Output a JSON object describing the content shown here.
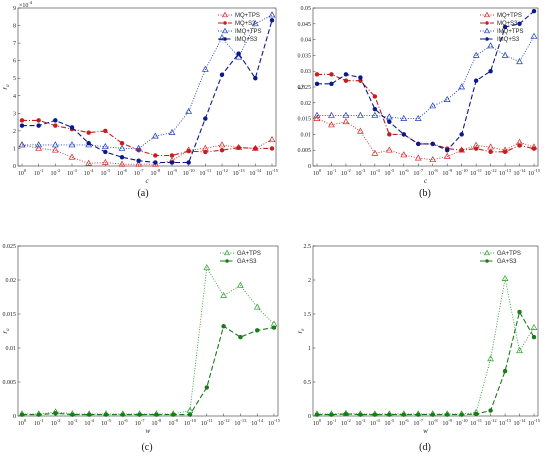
{
  "chart_data": [
    {
      "type": "line",
      "caption": "(a)",
      "xlabel": "c",
      "ylabel": "r",
      "ylabel_sub": "a",
      "ylim": [
        0,
        9
      ],
      "yticks": [
        0,
        1,
        2,
        3,
        4,
        5,
        6,
        7,
        8,
        9
      ],
      "y_exponent": "×10^-4",
      "categories": [
        "10^0",
        "10^-1",
        "10^-2",
        "10^-3",
        "10^-4",
        "10^-5",
        "10^-6",
        "10^-7",
        "10^-8",
        "10^-9",
        "10^-10",
        "10^-11",
        "10^-12",
        "10^-13",
        "10^-14",
        "10^-15"
      ],
      "legend_position": "top-right",
      "series": [
        {
          "name": "MQ+TPS",
          "color": "#d62728",
          "marker": "triangle",
          "dash": "dotted",
          "values": [
            1.2,
            1.0,
            0.9,
            0.5,
            0.15,
            0.2,
            0.1,
            0.1,
            0.1,
            0.3,
            0.9,
            1.0,
            1.2,
            1.05,
            1.0,
            1.5
          ]
        },
        {
          "name": "MQ+S3",
          "color": "#c41e1e",
          "marker": "star",
          "dash": "dashdot",
          "values": [
            2.6,
            2.6,
            2.3,
            2.1,
            1.9,
            2.0,
            1.3,
            0.9,
            0.6,
            0.6,
            0.85,
            0.8,
            0.9,
            1.05,
            1.0,
            1.0
          ]
        },
        {
          "name": "IMQ+TPS",
          "color": "#1f3fbf",
          "marker": "triangle",
          "dash": "dotted",
          "values": [
            1.2,
            1.2,
            1.2,
            1.2,
            1.2,
            1.1,
            1.0,
            1.0,
            1.7,
            1.9,
            3.1,
            5.5,
            7.3,
            6.2,
            8.1,
            8.6
          ]
        },
        {
          "name": "IMQ+S3",
          "color": "#0a1a8a",
          "marker": "star",
          "dash": "dashed",
          "values": [
            2.3,
            2.3,
            2.6,
            2.2,
            1.3,
            0.8,
            0.5,
            0.3,
            0.2,
            0.2,
            0.2,
            2.7,
            5.2,
            6.4,
            5.0,
            8.3
          ]
        }
      ]
    },
    {
      "type": "line",
      "caption": "(b)",
      "xlabel": "c",
      "ylabel": "r",
      "ylabel_sub": "e",
      "ylim": [
        0,
        0.05
      ],
      "yticks": [
        0,
        0.005,
        0.01,
        0.015,
        0.02,
        0.025,
        0.03,
        0.035,
        0.04,
        0.045,
        0.05
      ],
      "categories": [
        "10^0",
        "10^-1",
        "10^-2",
        "10^-3",
        "10^-4",
        "10^-5",
        "10^-6",
        "10^-7",
        "10^-8",
        "10^-9",
        "10^-10",
        "10^-11",
        "10^-12",
        "10^-13",
        "10^-14",
        "10^-15"
      ],
      "legend_position": "top-right",
      "series": [
        {
          "name": "MQ+TPS",
          "color": "#d62728",
          "marker": "triangle",
          "dash": "dotted",
          "values": [
            0.015,
            0.013,
            0.014,
            0.011,
            0.004,
            0.005,
            0.0035,
            0.0025,
            0.002,
            0.003,
            0.005,
            0.0065,
            0.006,
            0.005,
            0.0075,
            0.006
          ]
        },
        {
          "name": "MQ+S3",
          "color": "#c41e1e",
          "marker": "star",
          "dash": "dashdot",
          "values": [
            0.029,
            0.029,
            0.027,
            0.027,
            0.022,
            0.01,
            0.01,
            0.007,
            0.007,
            0.0055,
            0.005,
            0.0055,
            0.0045,
            0.0045,
            0.0065,
            0.0055
          ]
        },
        {
          "name": "IMQ+TPS",
          "color": "#1f3fbf",
          "marker": "triangle",
          "dash": "dotted",
          "values": [
            0.016,
            0.016,
            0.016,
            0.016,
            0.016,
            0.0155,
            0.015,
            0.015,
            0.019,
            0.021,
            0.025,
            0.035,
            0.038,
            0.035,
            0.033,
            0.041
          ]
        },
        {
          "name": "IMQ+S3",
          "color": "#0a1a8a",
          "marker": "star",
          "dash": "dashed",
          "values": [
            0.026,
            0.026,
            0.029,
            0.028,
            0.018,
            0.014,
            0.01,
            0.007,
            0.007,
            0.005,
            0.01,
            0.027,
            0.03,
            0.044,
            0.045,
            0.049
          ]
        }
      ]
    },
    {
      "type": "line",
      "caption": "(c)",
      "xlabel": "w",
      "ylabel": "r",
      "ylabel_sub": "a",
      "ylim": [
        0,
        0.025
      ],
      "yticks": [
        0,
        0.005,
        0.01,
        0.015,
        0.02,
        0.025
      ],
      "categories": [
        "10^0",
        "10^-1",
        "10^-2",
        "10^-3",
        "10^-4",
        "10^-5",
        "10^-6",
        "10^-7",
        "10^-8",
        "10^-9",
        "10^-10",
        "10^-11",
        "10^-12",
        "10^-13",
        "10^-14",
        "10^-15"
      ],
      "legend_position": "top-right",
      "series": [
        {
          "name": "GA+TPS",
          "color": "#2ca02c",
          "marker": "triangle",
          "dash": "dotted",
          "values": [
            0.0003,
            0.0003,
            0.0006,
            0.0003,
            0.0003,
            0.0003,
            0.0003,
            0.0003,
            0.0003,
            0.0003,
            0.0008,
            0.0218,
            0.0177,
            0.0192,
            0.016,
            0.0135
          ]
        },
        {
          "name": "GA+S3",
          "color": "#1a7a1a",
          "marker": "star",
          "dash": "dashed",
          "values": [
            0.0002,
            0.0002,
            0.0004,
            0.0002,
            0.0002,
            0.0002,
            0.0002,
            0.0002,
            0.0002,
            0.0002,
            0.0002,
            0.0042,
            0.0132,
            0.0116,
            0.0126,
            0.013
          ]
        }
      ]
    },
    {
      "type": "line",
      "caption": "(d)",
      "xlabel": "w",
      "ylabel": "r",
      "ylabel_sub": "e",
      "ylim": [
        0,
        2.5
      ],
      "yticks": [
        0,
        0.5,
        1,
        1.5,
        2,
        2.5
      ],
      "categories": [
        "10^0",
        "10^-1",
        "10^-2",
        "10^-3",
        "10^-4",
        "10^-5",
        "10^-6",
        "10^-7",
        "10^-8",
        "10^-9",
        "10^-10",
        "10^-11",
        "10^-12",
        "10^-13",
        "10^-14",
        "10^-15"
      ],
      "legend_position": "top-right",
      "series": [
        {
          "name": "GA+TPS",
          "color": "#2ca02c",
          "marker": "triangle",
          "dash": "dotted",
          "values": [
            0.03,
            0.03,
            0.04,
            0.03,
            0.03,
            0.03,
            0.03,
            0.03,
            0.03,
            0.03,
            0.03,
            0.05,
            0.84,
            2.02,
            0.96,
            1.3
          ]
        },
        {
          "name": "GA+S3",
          "color": "#1a7a1a",
          "marker": "star",
          "dash": "dashed",
          "values": [
            0.02,
            0.02,
            0.03,
            0.02,
            0.02,
            0.02,
            0.02,
            0.02,
            0.02,
            0.02,
            0.02,
            0.03,
            0.08,
            0.66,
            1.53,
            1.16
          ]
        }
      ]
    }
  ]
}
